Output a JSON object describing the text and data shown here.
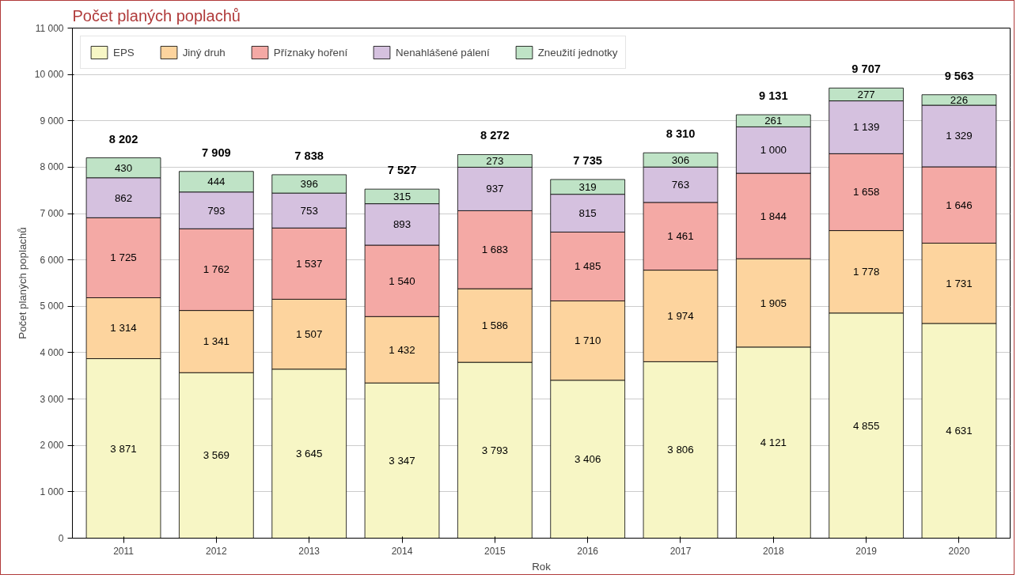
{
  "chart_data": {
    "type": "bar",
    "stacked": true,
    "title": "Počet planých poplachů",
    "xlabel": "Rok",
    "ylabel": "Počet planých poplachů",
    "categories": [
      "2011",
      "2012",
      "2013",
      "2014",
      "2015",
      "2016",
      "2017",
      "2018",
      "2019",
      "2020"
    ],
    "series": [
      {
        "name": "EPS",
        "color": "#f7f6c5",
        "values": [
          3871,
          3569,
          3645,
          3347,
          3793,
          3406,
          3806,
          4121,
          4855,
          4631
        ],
        "value_labels": [
          "3 871",
          "3 569",
          "3 645",
          "3 347",
          "3 793",
          "3 406",
          "3 806",
          "4 121",
          "4 855",
          "4 631"
        ]
      },
      {
        "name": "Jiný druh",
        "color": "#fdd49e",
        "values": [
          1314,
          1341,
          1507,
          1432,
          1586,
          1710,
          1974,
          1905,
          1778,
          1731
        ],
        "value_labels": [
          "1 314",
          "1 341",
          "1 507",
          "1 432",
          "1 586",
          "1 710",
          "1 974",
          "1 905",
          "1 778",
          "1 731"
        ]
      },
      {
        "name": "Příznaky hoření",
        "color": "#f4a9a5",
        "values": [
          1725,
          1762,
          1537,
          1540,
          1683,
          1485,
          1461,
          1844,
          1658,
          1646
        ],
        "value_labels": [
          "1 725",
          "1 762",
          "1 537",
          "1 540",
          "1 683",
          "1 485",
          "1 461",
          "1 844",
          "1 658",
          "1 646"
        ]
      },
      {
        "name": "Nenahlášené pálení",
        "color": "#d5c1df",
        "values": [
          862,
          793,
          753,
          893,
          937,
          815,
          763,
          1000,
          1139,
          1329
        ],
        "value_labels": [
          "862",
          "793",
          "753",
          "893",
          "937",
          "815",
          "763",
          "1 000",
          "1 139",
          "1 329"
        ]
      },
      {
        "name": "Zneužití jednotky",
        "color": "#bfe3c6",
        "values": [
          430,
          444,
          396,
          315,
          273,
          319,
          306,
          261,
          277,
          226
        ],
        "value_labels": [
          "430",
          "444",
          "396",
          "315",
          "273",
          "319",
          "306",
          "261",
          "277",
          "226"
        ]
      }
    ],
    "totals": [
      "8 202",
      "7 909",
      "7 838",
      "7 527",
      "8 272",
      "7 735",
      "8 310",
      "9 131",
      "9 707",
      "9 563"
    ],
    "ylim": [
      0,
      11000
    ],
    "yticks": [
      0,
      {
        "value": 1000,
        "label": "1 000"
      },
      {
        "value": 2000,
        "label": "2 000"
      },
      {
        "value": 3000,
        "label": "3 000"
      },
      {
        "value": 4000,
        "label": "4 000"
      },
      {
        "value": 5000,
        "label": "5 000"
      },
      {
        "value": 6000,
        "label": "6 000"
      },
      {
        "value": 7000,
        "label": "7 000"
      },
      {
        "value": 8000,
        "label": "8 000"
      },
      {
        "value": 9000,
        "label": "9 000"
      },
      {
        "value": 10000,
        "label": "10 000"
      },
      {
        "value": 11000,
        "label": "11 000"
      }
    ],
    "grid": "y",
    "legend": "top left"
  }
}
